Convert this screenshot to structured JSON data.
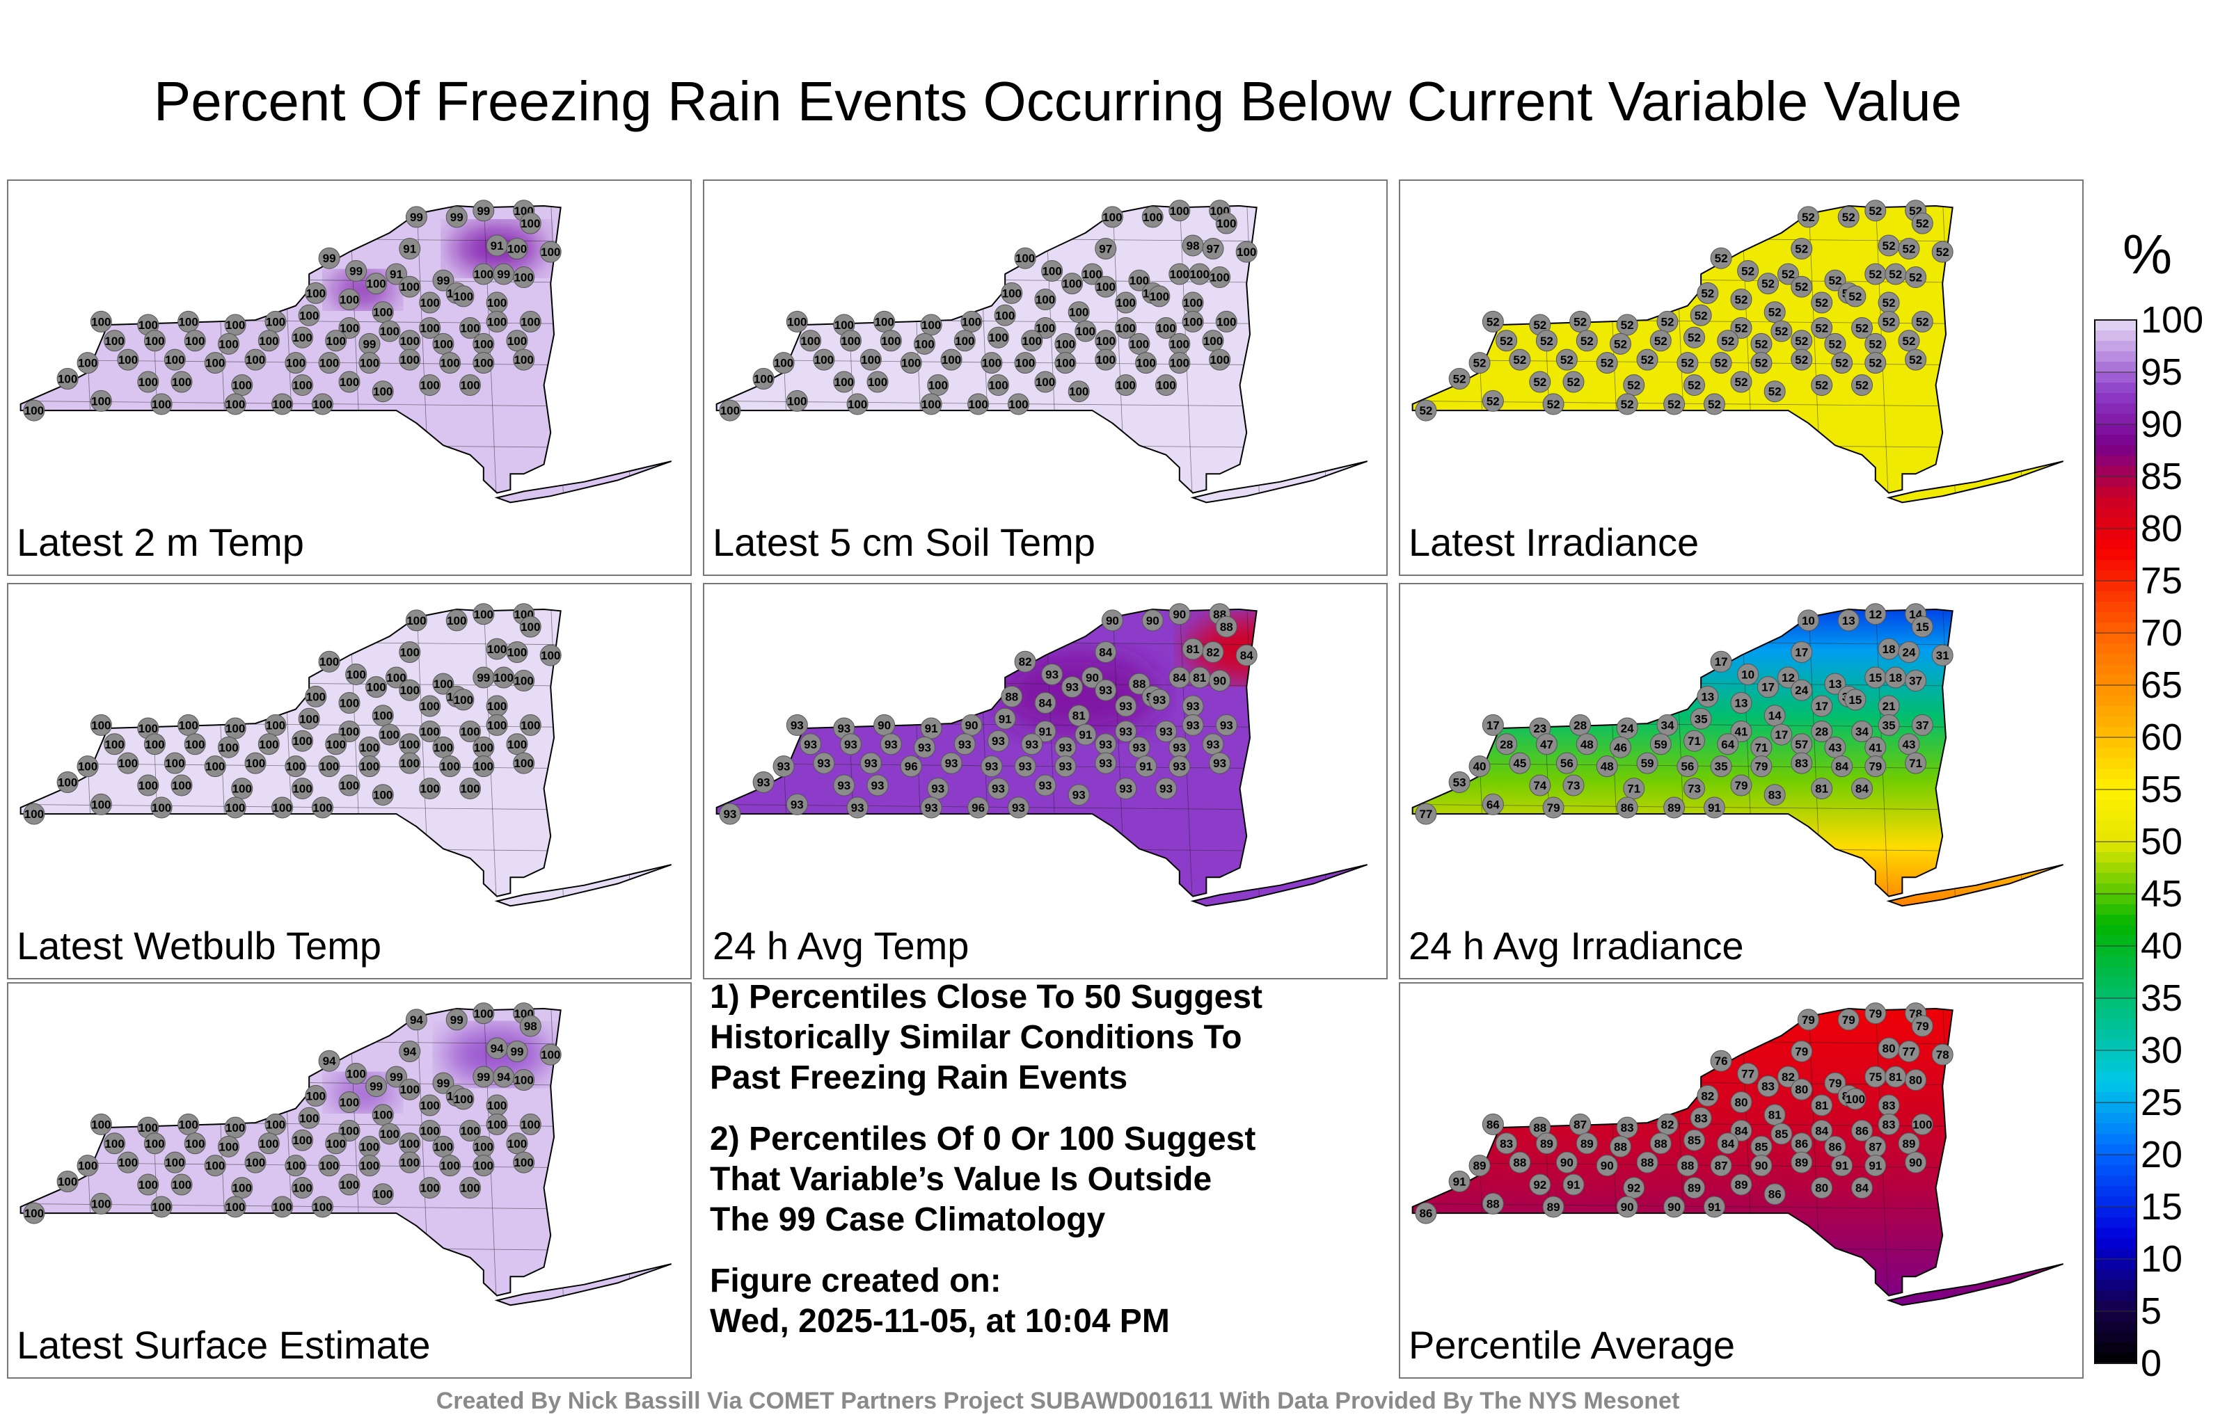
{
  "title": "Percent Of Freezing Rain Events Occurring Below Current Variable Value",
  "colorbar": {
    "unit": "%",
    "ticks": [
      "100",
      "95",
      "90",
      "85",
      "80",
      "75",
      "70",
      "65",
      "60",
      "55",
      "50",
      "45",
      "40",
      "35",
      "30",
      "25",
      "20",
      "15",
      "10",
      "5",
      "0"
    ],
    "range": [
      0,
      100
    ]
  },
  "notes": {
    "note1": "1) Percentiles Close To 50 Suggest\nHistorically Similar Conditions To\nPast Freezing Rain Events",
    "note2": "2) Percentiles Of 0 Or 100 Suggest\nThat Variable’s Value Is Outside\nThe 99 Case Climatology",
    "created_label": "Figure created on:",
    "created_date": "Wed, 2025-11-05, at 10:04 PM"
  },
  "footer": "Created By Nick Bassill Via COMET Partners Project SUBAWD001611 With Data Provided By The NYS Mesonet",
  "chart_data": [
    {
      "type": "map",
      "title": "Latest 2 m Temp",
      "field": {
        "base": 99,
        "hotspots": [
          [
            0.72,
            0.17,
            91,
            0.07
          ],
          [
            0.52,
            0.3,
            91,
            0.05
          ]
        ]
      },
      "station_values": [
        "99",
        "99",
        "99",
        "100",
        "100",
        "99",
        "91",
        "91",
        "100",
        "100",
        "99",
        "91",
        "99",
        "100",
        "99",
        "100",
        "100",
        "100",
        "100",
        "100",
        "100",
        "100",
        "100",
        "100",
        "100",
        "100",
        "100",
        "100",
        "100",
        "100",
        "100",
        "100",
        "100",
        "100",
        "100",
        "100",
        "100",
        "100",
        "100",
        "100",
        "100",
        "100",
        "100",
        "100",
        "99",
        "100",
        "100",
        "100",
        "100",
        "100",
        "100",
        "100",
        "100",
        "100",
        "100",
        "100",
        "100",
        "100",
        "100",
        "100",
        "100",
        "100",
        "100",
        "100",
        "100",
        "100",
        "100",
        "100",
        "100",
        "100",
        "100",
        "100",
        "100",
        "100",
        "100",
        "100"
      ]
    },
    {
      "type": "map",
      "title": "Latest 5 cm Soil Temp",
      "field": {
        "base": 100,
        "hotspots": []
      },
      "station_values": [
        "100",
        "100",
        "100",
        "100",
        "100",
        "100",
        "97",
        "98",
        "97",
        "100",
        "100",
        "100",
        "100",
        "100",
        "100",
        "100",
        "100",
        "100",
        "100",
        "100",
        "100",
        "100",
        "100",
        "100",
        "100",
        "100",
        "100",
        "100",
        "100",
        "100",
        "100",
        "100",
        "100",
        "100",
        "100",
        "100",
        "100",
        "100",
        "100",
        "100",
        "100",
        "100",
        "100",
        "100",
        "100",
        "100",
        "100",
        "100",
        "100",
        "100",
        "100",
        "100",
        "100",
        "100",
        "100",
        "100",
        "100",
        "100",
        "100",
        "100",
        "100",
        "100",
        "100",
        "100",
        "100",
        "100",
        "100",
        "100",
        "100",
        "100",
        "100",
        "100",
        "100",
        "100",
        "100",
        "100"
      ]
    },
    {
      "type": "map",
      "title": "Latest Irradiance",
      "field": {
        "base": 52,
        "hotspots": []
      },
      "station_values": [
        "52",
        "52",
        "52",
        "52",
        "52",
        "52",
        "52",
        "52",
        "52",
        "52",
        "52",
        "52",
        "52",
        "52",
        "52",
        "52",
        "52",
        "52",
        "52",
        "52",
        "52",
        "52",
        "52",
        "52",
        "52",
        "52",
        "52",
        "52",
        "52",
        "52",
        "52",
        "52",
        "52",
        "52",
        "52",
        "52",
        "52",
        "52",
        "52",
        "52",
        "52",
        "52",
        "52",
        "52",
        "52",
        "52",
        "52",
        "52",
        "52",
        "52",
        "52",
        "52",
        "52",
        "52",
        "52",
        "52",
        "52",
        "52",
        "52",
        "52",
        "52",
        "52",
        "52",
        "52",
        "52",
        "52",
        "52",
        "52",
        "52",
        "52",
        "52",
        "52",
        "52",
        "52",
        "52",
        "52"
      ]
    },
    {
      "type": "map",
      "title": "Latest Wetbulb Temp",
      "field": {
        "base": 100,
        "hotspots": []
      },
      "station_values": [
        "100",
        "100",
        "100",
        "100",
        "100",
        "100",
        "100",
        "100",
        "100",
        "100",
        "100",
        "100",
        "100",
        "99",
        "100",
        "100",
        "100",
        "100",
        "100",
        "100",
        "100",
        "100",
        "100",
        "100",
        "100",
        "100",
        "100",
        "100",
        "100",
        "100",
        "100",
        "100",
        "100",
        "100",
        "100",
        "100",
        "100",
        "100",
        "100",
        "100",
        "100",
        "100",
        "100",
        "100",
        "100",
        "100",
        "100",
        "100",
        "100",
        "100",
        "100",
        "100",
        "100",
        "100",
        "100",
        "100",
        "100",
        "100",
        "100",
        "100",
        "100",
        "100",
        "100",
        "100",
        "100",
        "100",
        "100",
        "100",
        "100",
        "100",
        "100",
        "100",
        "100",
        "100",
        "100",
        "100"
      ]
    },
    {
      "type": "map",
      "title": "24 h Avg Temp",
      "field": {
        "base": 93,
        "hotspots": [
          [
            0.8,
            0.16,
            82,
            0.09
          ],
          [
            0.55,
            0.3,
            90,
            0.12
          ],
          [
            0.06,
            0.55,
            96,
            0.03
          ]
        ]
      },
      "station_values": [
        "90",
        "90",
        "90",
        "88",
        "88",
        "82",
        "84",
        "81",
        "82",
        "84",
        "93",
        "90",
        "88",
        "84",
        "81",
        "93",
        "93",
        "90",
        "90",
        "88",
        "84",
        "81",
        "93",
        "93",
        "93",
        "93",
        "93",
        "90",
        "91",
        "90",
        "91",
        "91",
        "91",
        "93",
        "93",
        "93",
        "93",
        "93",
        "93",
        "93",
        "93",
        "93",
        "93",
        "93",
        "93",
        "93",
        "93",
        "93",
        "93",
        "93",
        "93",
        "93",
        "96",
        "93",
        "93",
        "93",
        "93",
        "93",
        "91",
        "93",
        "93",
        "93",
        "93",
        "93",
        "93",
        "93",
        "93",
        "93",
        "93",
        "93",
        "93",
        "93",
        "93",
        "93",
        "96",
        "93"
      ]
    },
    {
      "type": "map",
      "title": "24 h Avg Irradiance",
      "field": {
        "base": 52,
        "gradient": "north-south",
        "north": 13,
        "south": 79
      },
      "station_values": [
        "10",
        "13",
        "12",
        "14",
        "15",
        "17",
        "17",
        "18",
        "24",
        "31",
        "10",
        "12",
        "13",
        "15",
        "18",
        "17",
        "24",
        "34",
        "37",
        "13",
        "13",
        "14",
        "17",
        "15",
        "21",
        "17",
        "23",
        "28",
        "24",
        "34",
        "35",
        "41",
        "17",
        "28",
        "34",
        "35",
        "37",
        "28",
        "47",
        "48",
        "46",
        "59",
        "71",
        "64",
        "71",
        "57",
        "43",
        "41",
        "43",
        "40",
        "45",
        "56",
        "48",
        "59",
        "56",
        "35",
        "79",
        "83",
        "84",
        "79",
        "71",
        "53",
        "74",
        "73",
        "71",
        "73",
        "79",
        "83",
        "81",
        "84",
        "77",
        "64",
        "79",
        "86",
        "89",
        "91"
      ]
    },
    {
      "type": "map",
      "title": "Latest Surface Estimate",
      "field": {
        "base": 99,
        "hotspots": [
          [
            0.72,
            0.18,
            94,
            0.08
          ],
          [
            0.52,
            0.3,
            94,
            0.05
          ]
        ]
      },
      "station_values": [
        "94",
        "99",
        "100",
        "100",
        "98",
        "94",
        "94",
        "94",
        "99",
        "100",
        "100",
        "99",
        "99",
        "99",
        "94",
        "99",
        "100",
        "100",
        "100",
        "100",
        "100",
        "100",
        "100",
        "100",
        "100",
        "100",
        "100",
        "100",
        "100",
        "100",
        "100",
        "100",
        "100",
        "100",
        "100",
        "100",
        "100",
        "100",
        "100",
        "100",
        "100",
        "100",
        "100",
        "100",
        "100",
        "100",
        "100",
        "100",
        "100",
        "100",
        "100",
        "100",
        "100",
        "100",
        "100",
        "100",
        "100",
        "100",
        "100",
        "100",
        "100",
        "100",
        "100",
        "100",
        "100",
        "100",
        "100",
        "100",
        "100",
        "100",
        "100",
        "100",
        "100",
        "100",
        "100",
        "100"
      ]
    },
    {
      "type": "map",
      "title": "Percentile Average",
      "field": {
        "base": 80,
        "gradient": "north-south",
        "north": 78,
        "south": 90
      },
      "station_values": [
        "79",
        "79",
        "79",
        "78",
        "79",
        "76",
        "79",
        "80",
        "77",
        "78",
        "77",
        "82",
        "79",
        "75",
        "81",
        "83",
        "80",
        "80",
        "80",
        "82",
        "80",
        "81",
        "81",
        "100",
        "83",
        "86",
        "88",
        "87",
        "83",
        "82",
        "83",
        "84",
        "85",
        "84",
        "86",
        "83",
        "100",
        "83",
        "89",
        "89",
        "88",
        "88",
        "85",
        "84",
        "85",
        "86",
        "86",
        "87",
        "89",
        "89",
        "88",
        "90",
        "90",
        "88",
        "88",
        "87",
        "90",
        "89",
        "91",
        "91",
        "90",
        "91",
        "92",
        "91",
        "92",
        "89",
        "89",
        "86",
        "80",
        "84",
        "86",
        "88",
        "89",
        "90",
        "90",
        "91"
      ]
    }
  ]
}
